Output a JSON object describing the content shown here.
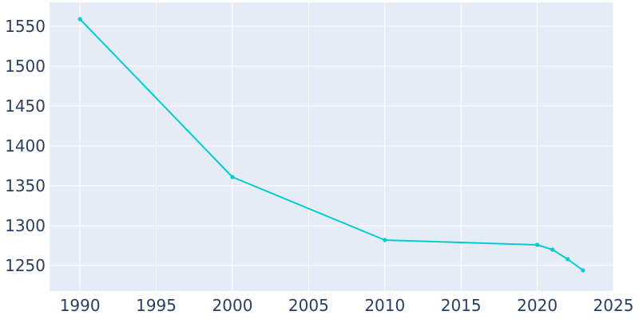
{
  "chart_data": {
    "type": "line",
    "title": "",
    "xlabel": "",
    "ylabel": "",
    "xlim": [
      1988,
      2025
    ],
    "ylim": [
      1218,
      1580
    ],
    "x_ticks": [
      1990,
      1995,
      2000,
      2005,
      2010,
      2015,
      2020,
      2025
    ],
    "y_ticks": [
      1250,
      1300,
      1350,
      1400,
      1450,
      1500,
      1550
    ],
    "grid": true,
    "legend": "none",
    "colors": {
      "plot_background": "#e5ecf6",
      "gridline": "#ffffff",
      "line": "#00cdd0",
      "tick_text": "#2a3f5f"
    },
    "series": [
      {
        "x": [
          1990,
          2000,
          2010,
          2020,
          2021,
          2022,
          2023
        ],
        "y": [
          1559,
          1361,
          1282,
          1276,
          1270,
          1258,
          1244
        ]
      }
    ]
  }
}
